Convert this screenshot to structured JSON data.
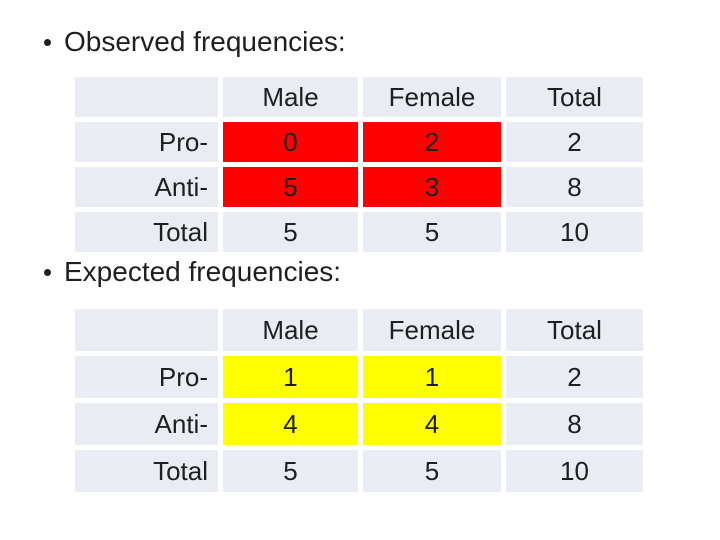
{
  "colors": {
    "slide_background": "#ffffff",
    "cell_background": "#e9edf3",
    "text": "#1f1f1f"
  },
  "sections": [
    {
      "title": "Observed frequencies:",
      "highlight_color": "#ff0000",
      "table": {
        "column_headers": [
          "Male",
          "Female",
          "Total"
        ],
        "rows": [
          {
            "label": "Pro-",
            "values": [
              "0",
              "2",
              "2"
            ],
            "highlight": [
              true,
              true,
              false
            ]
          },
          {
            "label": "Anti-",
            "values": [
              "5",
              "3",
              "8"
            ],
            "highlight": [
              true,
              true,
              false
            ]
          },
          {
            "label": "Total",
            "values": [
              "5",
              "5",
              "10"
            ],
            "highlight": [
              false,
              false,
              false
            ]
          }
        ]
      }
    },
    {
      "title": "Expected frequencies:",
      "highlight_color": "#ffff00",
      "table": {
        "column_headers": [
          "Male",
          "Female",
          "Total"
        ],
        "rows": [
          {
            "label": "Pro-",
            "values": [
              "1",
              "1",
              "2"
            ],
            "highlight": [
              true,
              true,
              false
            ]
          },
          {
            "label": "Anti-",
            "values": [
              "4",
              "4",
              "8"
            ],
            "highlight": [
              true,
              true,
              false
            ]
          },
          {
            "label": "Total",
            "values": [
              "5",
              "5",
              "10"
            ],
            "highlight": [
              false,
              false,
              false
            ]
          }
        ]
      }
    }
  ]
}
